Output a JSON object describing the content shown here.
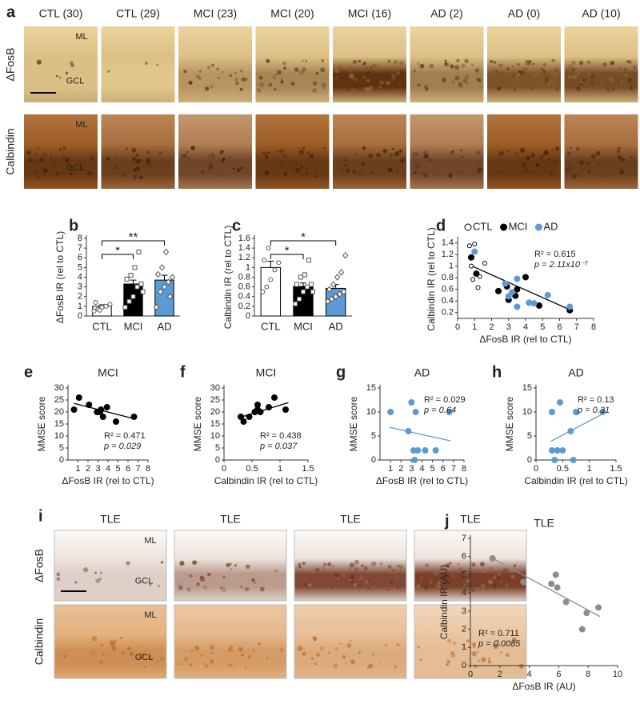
{
  "micrographs": [
    {
      "panel": "a",
      "columns": [
        "CTL (30)",
        "CTL (29)",
        "MCI (23)",
        "MCI (20)",
        "MCI (16)",
        "AD (2)",
        "AD (0)",
        "AD (10)"
      ],
      "rows": [
        "ΔFosB",
        "Calbindin"
      ],
      "region_labels": [
        "ML",
        "GCL"
      ]
    },
    {
      "panel": "i",
      "columns": [
        "TLE",
        "TLE",
        "TLE",
        "TLE"
      ],
      "rows": [
        "ΔFosB",
        "Calbindin"
      ],
      "region_labels": [
        "ML",
        "GCL"
      ]
    }
  ],
  "chart_data": [
    {
      "panel": "b",
      "type": "bar",
      "categories": [
        "CTL",
        "MCI",
        "AD"
      ],
      "values": [
        1.0,
        3.3,
        3.7
      ],
      "errors": [
        0.15,
        0.4,
        0.5
      ],
      "colors": [
        "#ffffff",
        "#000000",
        "#5b9bd5"
      ],
      "markers": [
        "circle",
        "square",
        "diamond"
      ],
      "points": [
        [
          0.5,
          0.7,
          0.9,
          1.0,
          1.2,
          1.4,
          0.6
        ],
        [
          0.9,
          1.5,
          2.0,
          3.0,
          3.3,
          3.8,
          4.2,
          5.0,
          6.6,
          2.5
        ],
        [
          0.9,
          2.5,
          3.0,
          3.5,
          4.0,
          4.3,
          5.0,
          6.6,
          2.0
        ]
      ],
      "ylabel": "ΔFosB IR (rel to CTL)",
      "ylim": [
        0,
        8
      ],
      "yticks": [
        0,
        1,
        2,
        3,
        4,
        5,
        6,
        7,
        8
      ],
      "annotations": [
        "*",
        "**"
      ]
    },
    {
      "panel": "c",
      "type": "bar",
      "categories": [
        "CTL",
        "MCI",
        "AD"
      ],
      "values": [
        1.0,
        0.61,
        0.57
      ],
      "errors": [
        0.13,
        0.07,
        0.08
      ],
      "colors": [
        "#ffffff",
        "#000000",
        "#5b9bd5"
      ],
      "markers": [
        "circle",
        "square",
        "diamond"
      ],
      "points": [
        [
          0.5,
          0.6,
          0.75,
          0.95,
          1.1,
          1.15,
          1.4
        ],
        [
          0.25,
          0.35,
          0.5,
          0.6,
          0.65,
          0.65,
          0.8,
          0.85,
          1.15,
          0.5
        ],
        [
          0.3,
          0.35,
          0.4,
          0.45,
          0.5,
          0.55,
          0.65,
          0.8,
          0.9,
          1.25
        ]
      ],
      "ylabel": "Calbindin IR (rel to CTL)",
      "ylim": [
        0,
        1.6
      ],
      "yticks": [
        0,
        0.2,
        0.4,
        0.6,
        0.8,
        1.0,
        1.2,
        1.4,
        1.6
      ],
      "annotations": [
        "*",
        "*"
      ]
    },
    {
      "panel": "d",
      "type": "scatter",
      "xlabel": "ΔFosB IR (rel to CTL)",
      "ylabel": "Calbindin IR (rel to CTL)",
      "series": [
        {
          "name": "CTL",
          "color": "#000000",
          "marker": "open",
          "x": [
            0.7,
            0.8,
            1.0,
            1.2,
            1.3,
            1.6,
            0.9
          ],
          "y": [
            1.35,
            1.0,
            1.38,
            0.63,
            0.82,
            1.05,
            0.77
          ]
        },
        {
          "name": "MCI",
          "color": "#000000",
          "marker": "filled",
          "x": [
            0.8,
            1.1,
            2.4,
            2.9,
            3.4,
            3.5,
            4.0,
            4.8,
            6.6,
            3.0
          ],
          "y": [
            1.15,
            0.87,
            0.57,
            0.65,
            0.49,
            0.6,
            0.81,
            0.32,
            0.24,
            0.42
          ]
        },
        {
          "name": "AD",
          "color": "#5b9bd5",
          "marker": "filled",
          "x": [
            1.0,
            2.8,
            3.0,
            3.5,
            3.5,
            4.2,
            4.5,
            5.3,
            6.6,
            3.2
          ],
          "y": [
            1.25,
            0.7,
            0.48,
            0.78,
            0.3,
            0.37,
            0.36,
            0.5,
            0.3,
            0.55
          ]
        }
      ],
      "trendline": {
        "color": "#000000",
        "x": [
          0.7,
          6.6
        ],
        "y": [
          1.02,
          0.25
        ]
      },
      "xlim": [
        0,
        8
      ],
      "xticks": [
        0,
        1,
        2,
        3,
        4,
        5,
        6,
        7,
        8
      ],
      "ylim": [
        0.1,
        1.45
      ],
      "yticks": [
        0.2,
        0.4,
        0.6,
        0.8,
        1.0,
        1.2,
        1.4
      ],
      "annotations": [
        "R² = 0.615",
        "p = 2.11x10⁻⁷"
      ]
    },
    {
      "panel": "e",
      "type": "scatter",
      "title": "MCI",
      "xlabel": "ΔFosB IR (rel to CTL)",
      "ylabel": "MMSE score",
      "color": "#000000",
      "x": [
        0.6,
        1.1,
        2.1,
        2.9,
        3.2,
        3.5,
        3.9,
        4.8,
        6.6,
        3.3
      ],
      "y": [
        21,
        26,
        23,
        20,
        20,
        18,
        22,
        16,
        18,
        21
      ],
      "trendline": {
        "color": "#000000",
        "x": [
          0.6,
          6.6
        ],
        "y": [
          23.6,
          17.2
        ]
      },
      "xlim": [
        0,
        8
      ],
      "xticks": [
        1,
        2,
        3,
        4,
        5,
        6,
        7,
        8
      ],
      "ylim": [
        0,
        30
      ],
      "yticks": [
        0,
        5,
        10,
        15,
        20,
        25,
        30
      ],
      "annotations": [
        "R² = 0.471",
        "p = 0.029"
      ]
    },
    {
      "panel": "f",
      "type": "scatter",
      "title": "MCI",
      "xlabel": "Calbindin IR (rel to CTL)",
      "ylabel": "MMSE score",
      "color": "#000000",
      "x": [
        0.3,
        0.35,
        0.45,
        0.55,
        0.6,
        0.65,
        0.8,
        0.9,
        1.1,
        0.6
      ],
      "y": [
        18,
        16,
        18,
        20,
        21,
        20,
        22,
        26,
        21,
        23
      ],
      "trendline": {
        "color": "#000000",
        "x": [
          0.25,
          1.15
        ],
        "y": [
          17.5,
          23.9
        ]
      },
      "xlim": [
        0,
        1.5
      ],
      "xticks": [
        0,
        0.5,
        1,
        1.5
      ],
      "ylim": [
        0,
        30
      ],
      "yticks": [
        0,
        5,
        10,
        15,
        20,
        25,
        30
      ],
      "annotations": [
        "R² = 0.438",
        "p = 0.037"
      ]
    },
    {
      "panel": "g",
      "type": "scatter",
      "title": "AD",
      "xlabel": "ΔFosB IR (rel to CTL)",
      "ylabel": "MMSE score",
      "color": "#5b9bd5",
      "x": [
        1.0,
        2.7,
        3.0,
        3.4,
        3.2,
        3.6,
        4.3,
        5.3,
        6.6,
        3.3
      ],
      "y": [
        10,
        6,
        12,
        10,
        2,
        2,
        2,
        2,
        10,
        0
      ],
      "trendline": {
        "color": "#5b9bd5",
        "x": [
          0.9,
          6.7
        ],
        "y": [
          6.8,
          4.0
        ]
      },
      "xlim": [
        0,
        8
      ],
      "xticks": [
        1,
        2,
        3,
        4,
        5,
        6,
        7,
        8
      ],
      "ylim": [
        0,
        15
      ],
      "yticks": [
        0,
        5,
        10,
        15
      ],
      "annotations": [
        "R² = 0.029",
        "p = 0.64"
      ]
    },
    {
      "panel": "h",
      "type": "scatter",
      "title": "AD",
      "xlabel": "Calbindin IR (rel to CTL)",
      "ylabel": "MMSE score",
      "color": "#5b9bd5",
      "x": [
        0.3,
        0.3,
        0.35,
        0.4,
        0.45,
        0.5,
        0.65,
        0.7,
        0.75,
        1.25
      ],
      "y": [
        10,
        2,
        0,
        2,
        12,
        2,
        6,
        0,
        10,
        10
      ],
      "trendline": {
        "color": "#5b9bd5",
        "x": [
          0.28,
          1.25
        ],
        "y": [
          3.9,
          9.6
        ]
      },
      "xlim": [
        0,
        1.5
      ],
      "xticks": [
        0,
        0.5,
        1,
        1.5
      ],
      "ylim": [
        0,
        15
      ],
      "yticks": [
        0,
        5,
        10,
        15
      ],
      "annotations": [
        "R² = 0.13",
        "p = 0.31"
      ]
    },
    {
      "panel": "j",
      "type": "scatter",
      "title": "TLE",
      "xlabel": "ΔFosB IR (AU)",
      "ylabel": "Calbindin IR (AU)",
      "color": "#8c8c8c",
      "x": [
        1.5,
        3.6,
        5.5,
        5.8,
        6.5,
        7.6,
        7.9,
        8.7,
        5.9
      ],
      "y": [
        5.9,
        4.6,
        4.5,
        5.0,
        3.5,
        2.0,
        2.9,
        3.2,
        4.3
      ],
      "trendline": {
        "color": "#8c8c8c",
        "x": [
          1.5,
          8.8
        ],
        "y": [
          5.9,
          2.7
        ]
      },
      "xlim": [
        0,
        10
      ],
      "xticks": [
        0,
        2,
        4,
        6,
        8,
        10
      ],
      "ylim": [
        0,
        7
      ],
      "yticks": [
        0,
        1,
        2,
        3,
        4,
        5,
        6,
        7
      ],
      "annotations": [
        "R² = 0.711",
        "p = 0.0085"
      ]
    }
  ]
}
